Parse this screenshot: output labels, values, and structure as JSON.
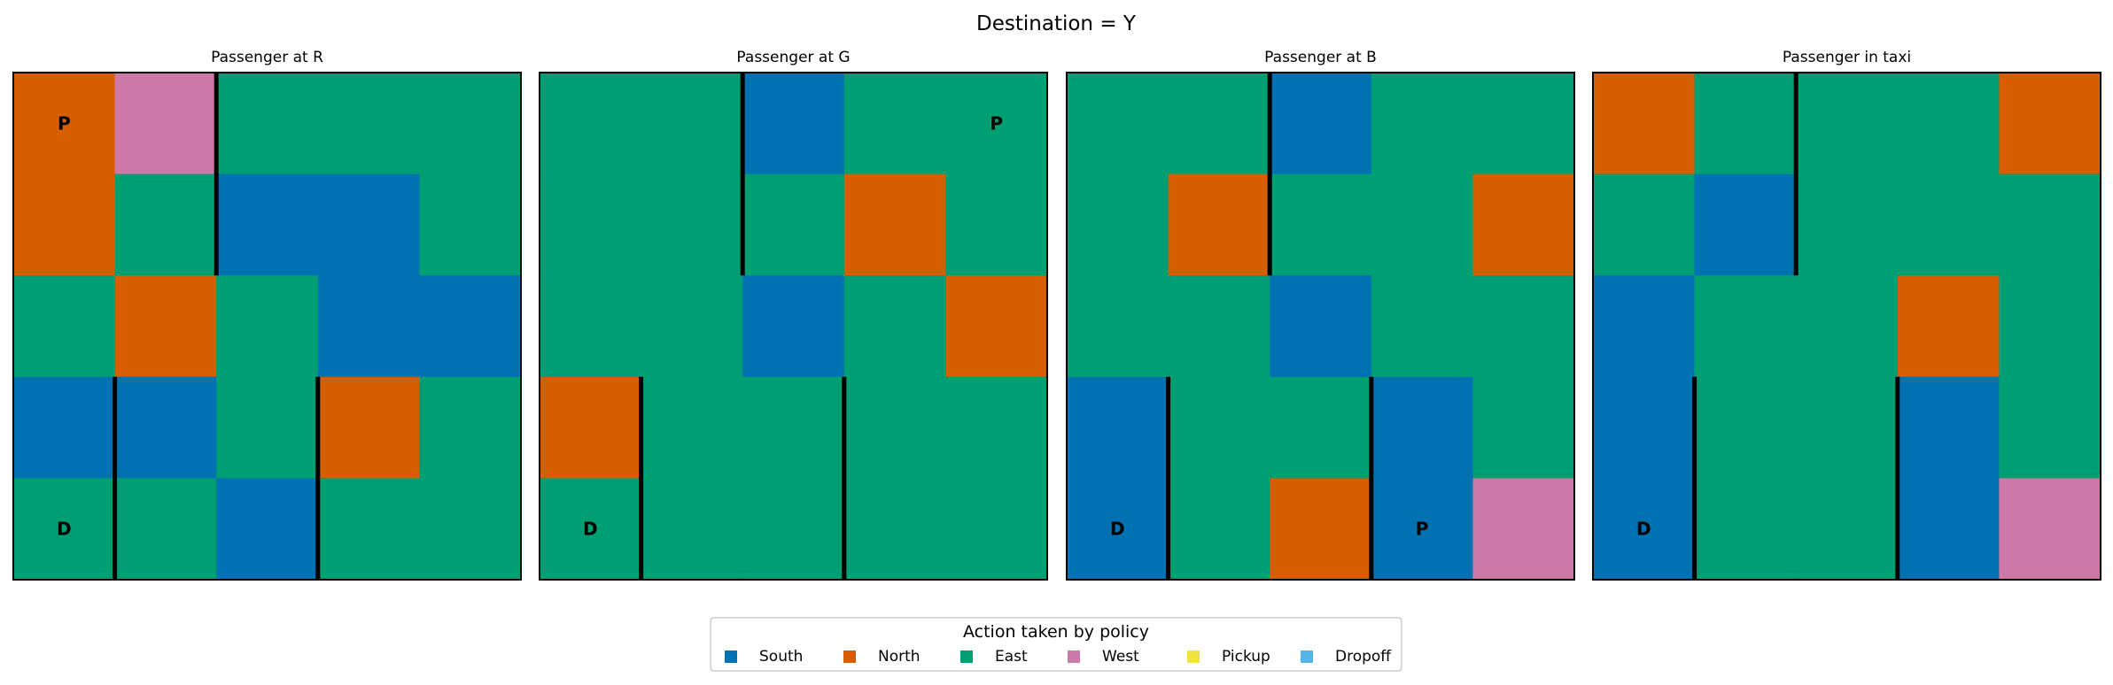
{
  "title": "Destination = Y",
  "colors": {
    "South": "#0072b2",
    "North": "#d55e00",
    "East": "#009e73",
    "West": "#cc79a7",
    "Pickup": "#f0e442",
    "Dropoff": "#56b4e9"
  },
  "legend": {
    "title": "Action taken by policy",
    "placement": "bottom-center",
    "entries": [
      "South",
      "North",
      "East",
      "West",
      "Pickup",
      "Dropoff"
    ]
  },
  "chart_data": [
    {
      "type": "heatmap",
      "title": "Passenger at R",
      "grid": [
        [
          "North",
          "West",
          "East",
          "East",
          "East"
        ],
        [
          "North",
          "East",
          "South",
          "South",
          "East"
        ],
        [
          "East",
          "North",
          "East",
          "South",
          "South"
        ],
        [
          "South",
          "South",
          "East",
          "North",
          "East"
        ],
        [
          "East",
          "East",
          "South",
          "East",
          "East"
        ]
      ],
      "markers": [
        {
          "label": "P",
          "row": 0,
          "col": 0
        },
        {
          "label": "D",
          "row": 4,
          "col": 0
        }
      ]
    },
    {
      "type": "heatmap",
      "title": "Passenger at G",
      "grid": [
        [
          "East",
          "East",
          "South",
          "East",
          "East"
        ],
        [
          "East",
          "East",
          "East",
          "North",
          "East"
        ],
        [
          "East",
          "East",
          "South",
          "East",
          "North"
        ],
        [
          "North",
          "East",
          "East",
          "East",
          "East"
        ],
        [
          "East",
          "East",
          "East",
          "East",
          "East"
        ]
      ],
      "markers": [
        {
          "label": "P",
          "row": 0,
          "col": 4
        },
        {
          "label": "D",
          "row": 4,
          "col": 0
        }
      ]
    },
    {
      "type": "heatmap",
      "title": "Passenger at B",
      "grid": [
        [
          "East",
          "East",
          "South",
          "East",
          "East"
        ],
        [
          "East",
          "North",
          "East",
          "East",
          "North"
        ],
        [
          "East",
          "East",
          "South",
          "East",
          "East"
        ],
        [
          "South",
          "East",
          "East",
          "South",
          "East"
        ],
        [
          "South",
          "East",
          "North",
          "South",
          "West"
        ]
      ],
      "markers": [
        {
          "label": "P",
          "row": 4,
          "col": 3
        },
        {
          "label": "D",
          "row": 4,
          "col": 0
        }
      ]
    },
    {
      "type": "heatmap",
      "title": "Passenger in taxi",
      "grid": [
        [
          "North",
          "East",
          "East",
          "East",
          "North"
        ],
        [
          "East",
          "South",
          "East",
          "East",
          "East"
        ],
        [
          "South",
          "East",
          "East",
          "North",
          "East"
        ],
        [
          "South",
          "East",
          "East",
          "South",
          "East"
        ],
        [
          "South",
          "East",
          "East",
          "South",
          "West"
        ]
      ],
      "markers": [
        {
          "label": "D",
          "row": 4,
          "col": 0
        }
      ]
    }
  ]
}
